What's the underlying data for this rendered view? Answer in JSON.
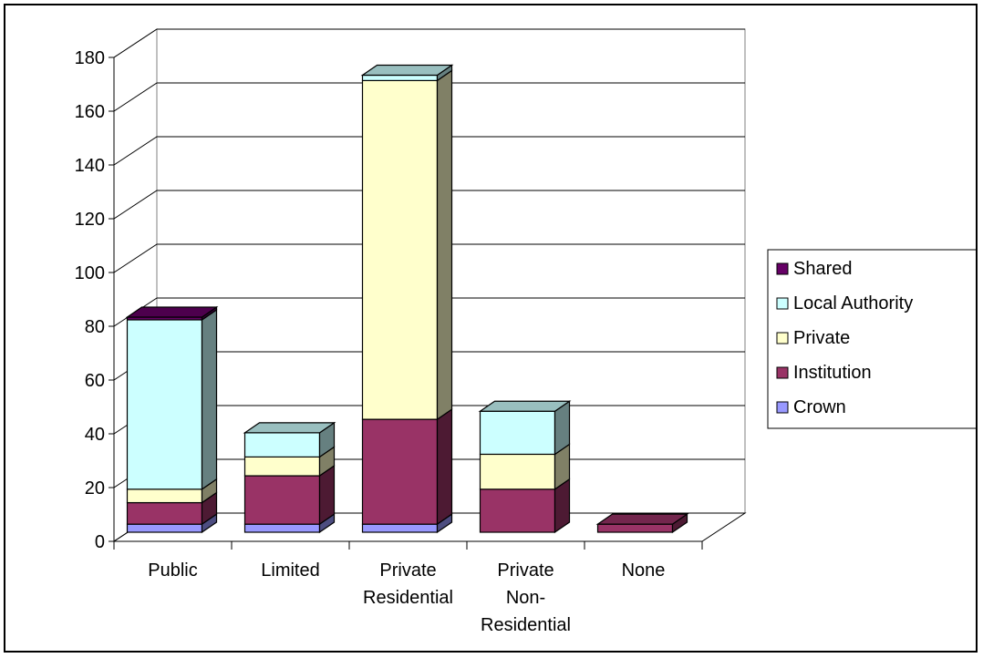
{
  "chart_data": {
    "type": "bar",
    "stacked": true,
    "three_d": true,
    "categories": [
      [
        "Public"
      ],
      [
        "Limited"
      ],
      [
        "Private",
        "Residential"
      ],
      [
        "Private",
        "Non-",
        "Residential"
      ],
      [
        "None"
      ]
    ],
    "series": [
      {
        "name": "Crown",
        "color": "#9999FF",
        "values": [
          3,
          3,
          3,
          0,
          0
        ]
      },
      {
        "name": "Institution",
        "color": "#993366",
        "values": [
          8,
          18,
          39,
          16,
          3
        ]
      },
      {
        "name": "Private",
        "color": "#FFFFCC",
        "values": [
          5,
          7,
          126,
          13,
          0
        ]
      },
      {
        "name": "Local Authority",
        "color": "#CCFFFF",
        "values": [
          63,
          9,
          2,
          16,
          0
        ]
      },
      {
        "name": "Shared",
        "color": "#660066",
        "values": [
          1,
          0,
          0,
          0,
          0
        ]
      }
    ],
    "ylim": [
      0,
      180
    ],
    "yticks": [
      0,
      20,
      40,
      60,
      80,
      100,
      120,
      140,
      160,
      180
    ],
    "grid": true,
    "legend": "right",
    "legend_order": [
      "Shared",
      "Local Authority",
      "Private",
      "Institution",
      "Crown"
    ],
    "title": "",
    "xlabel": "",
    "ylabel": ""
  }
}
